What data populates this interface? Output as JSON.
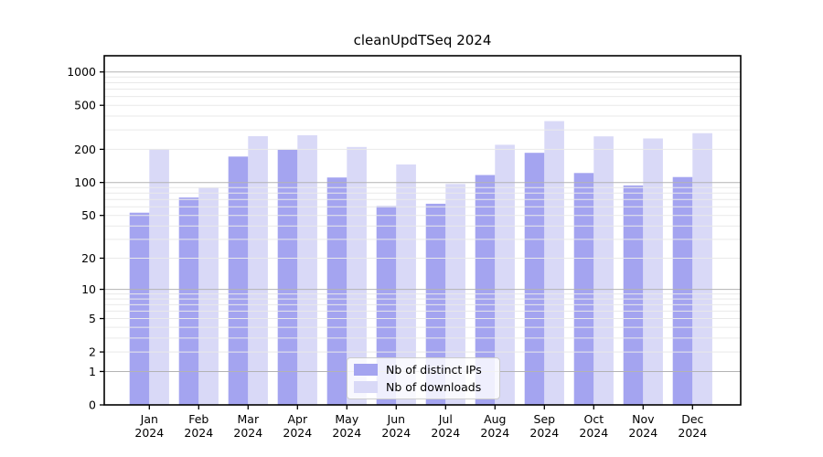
{
  "figure": {
    "title": "cleanUpdTSeq 2024",
    "background_color": "#ffffff",
    "frame_color": "#000000"
  },
  "legend": {
    "items": [
      {
        "label": "Nb of distinct IPs",
        "color": "#a4a4f0"
      },
      {
        "label": "Nb of downloads",
        "color": "#d9d9f7"
      }
    ]
  },
  "chart_data": {
    "type": "bar",
    "title": "cleanUpdTSeq 2024",
    "categories": [
      "Jan",
      "Feb",
      "Mar",
      "Apr",
      "May",
      "Jun",
      "Jul",
      "Aug",
      "Sep",
      "Oct",
      "Nov",
      "Dec"
    ],
    "category_sublabel": "2024",
    "series": [
      {
        "name": "Nb of distinct IPs",
        "color": "#a4a4f0",
        "values": [
          53,
          73,
          172,
          198,
          111,
          61,
          64,
          117,
          186,
          122,
          94,
          112
        ]
      },
      {
        "name": "Nb of downloads",
        "color": "#d9d9f7",
        "values": [
          200,
          90,
          263,
          268,
          210,
          146,
          97,
          220,
          360,
          262,
          251,
          280
        ]
      }
    ],
    "xlabel": "",
    "ylabel": "",
    "yscale": "log1p",
    "ylim": [
      0,
      1400
    ],
    "yticks": [
      0,
      1,
      2,
      5,
      10,
      20,
      50,
      100,
      200,
      500,
      1000
    ],
    "grid": true,
    "grid_major_values": [
      1,
      10,
      100,
      1000
    ],
    "grid_minor_values": [
      2,
      3,
      4,
      5,
      6,
      7,
      8,
      9,
      20,
      30,
      40,
      50,
      60,
      70,
      80,
      90,
      200,
      300,
      400,
      500,
      600,
      700,
      800,
      900
    ],
    "grid_major_color": "#b3b3b3",
    "grid_minor_color": "#e9e9e9",
    "legend_position": "lower center"
  }
}
